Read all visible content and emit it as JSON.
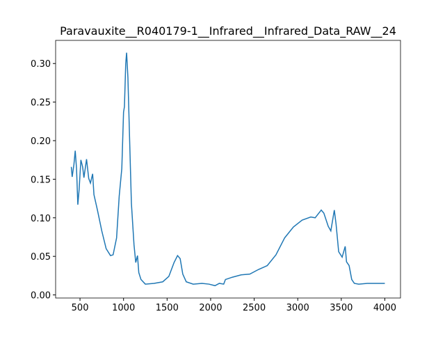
{
  "chart_data": {
    "type": "line",
    "title": "Paravauxite__R040179-1__Infrared__Infrared_Data_RAW__24",
    "x": [
      400,
      410,
      430,
      445,
      460,
      475,
      490,
      510,
      530,
      545,
      575,
      600,
      620,
      645,
      660,
      700,
      750,
      800,
      850,
      880,
      920,
      950,
      980,
      1000,
      1010,
      1025,
      1035,
      1050,
      1070,
      1090,
      1120,
      1140,
      1160,
      1175,
      1200,
      1250,
      1350,
      1450,
      1520,
      1580,
      1620,
      1650,
      1680,
      1720,
      1800,
      1900,
      1980,
      2050,
      2100,
      2150,
      2170,
      2250,
      2350,
      2450,
      2550,
      2650,
      2750,
      2850,
      2950,
      3050,
      3150,
      3200,
      3270,
      3300,
      3350,
      3380,
      3420,
      3440,
      3470,
      3510,
      3545,
      3560,
      3590,
      3620,
      3650,
      3700,
      3800,
      3900,
      4000
    ],
    "series": [
      {
        "color": "#1f77b4",
        "values": [
          0.166,
          0.153,
          0.169,
          0.187,
          0.164,
          0.117,
          0.137,
          0.175,
          0.166,
          0.152,
          0.176,
          0.151,
          0.145,
          0.157,
          0.13,
          0.11,
          0.083,
          0.06,
          0.051,
          0.052,
          0.074,
          0.128,
          0.164,
          0.237,
          0.244,
          0.3,
          0.314,
          0.282,
          0.2,
          0.119,
          0.065,
          0.042,
          0.051,
          0.029,
          0.02,
          0.014,
          0.015,
          0.017,
          0.024,
          0.042,
          0.051,
          0.047,
          0.027,
          0.017,
          0.014,
          0.015,
          0.014,
          0.012,
          0.015,
          0.014,
          0.02,
          0.023,
          0.026,
          0.027,
          0.033,
          0.038,
          0.052,
          0.074,
          0.088,
          0.097,
          0.101,
          0.1,
          0.11,
          0.106,
          0.089,
          0.083,
          0.11,
          0.092,
          0.056,
          0.049,
          0.063,
          0.043,
          0.038,
          0.02,
          0.015,
          0.014,
          0.015,
          0.015,
          0.015
        ]
      }
    ],
    "xlim": [
      220,
      4180
    ],
    "ylim": [
      -0.004,
      0.33
    ],
    "xticks": [
      500,
      1000,
      1500,
      2000,
      2500,
      3000,
      3500,
      4000
    ],
    "yticks": [
      {
        "value": 0,
        "label": "0.00"
      },
      {
        "value": 0.05,
        "label": "0.05"
      },
      {
        "value": 0.1,
        "label": "0.10"
      },
      {
        "value": 0.15,
        "label": "0.15"
      },
      {
        "value": 0.2,
        "label": "0.20"
      },
      {
        "value": 0.25,
        "label": "0.25"
      },
      {
        "value": 0.3,
        "label": "0.30"
      }
    ]
  }
}
